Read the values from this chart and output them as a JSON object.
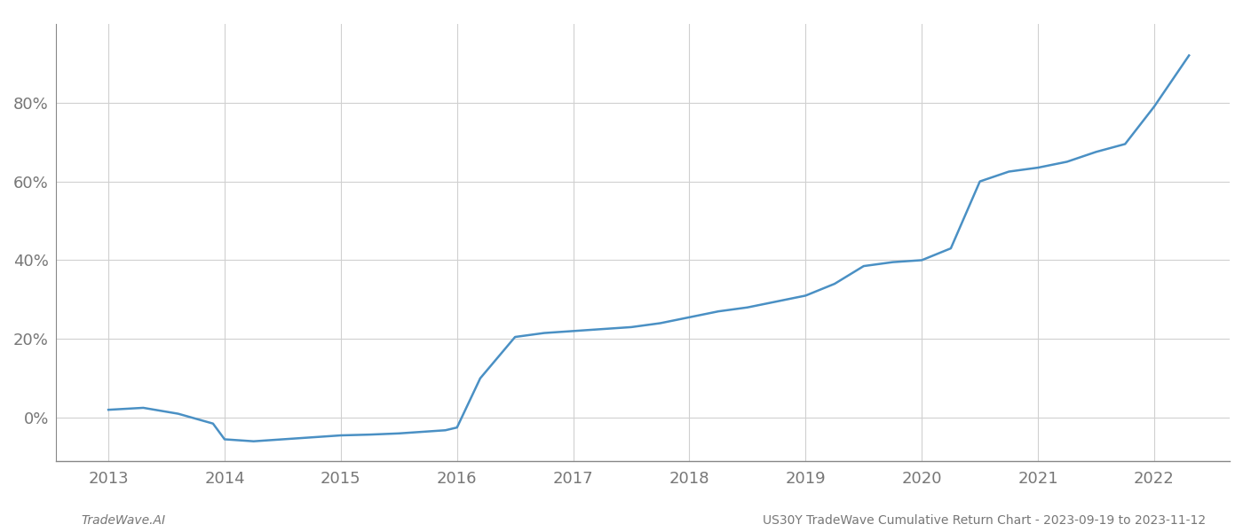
{
  "x_values": [
    2013.0,
    2013.3,
    2013.6,
    2013.9,
    2014.0,
    2014.25,
    2014.5,
    2014.75,
    2015.0,
    2015.25,
    2015.5,
    2015.75,
    2015.9,
    2016.0,
    2016.2,
    2016.5,
    2016.75,
    2017.0,
    2017.25,
    2017.5,
    2017.75,
    2018.0,
    2018.25,
    2018.5,
    2018.75,
    2019.0,
    2019.25,
    2019.5,
    2019.75,
    2020.0,
    2020.25,
    2020.5,
    2020.75,
    2021.0,
    2021.25,
    2021.5,
    2021.75,
    2022.0,
    2022.3
  ],
  "y_values": [
    2.0,
    2.5,
    1.0,
    -1.5,
    -5.5,
    -6.0,
    -5.5,
    -5.0,
    -4.5,
    -4.3,
    -4.0,
    -3.5,
    -3.2,
    -2.5,
    10.0,
    20.5,
    21.5,
    22.0,
    22.5,
    23.0,
    24.0,
    25.5,
    27.0,
    28.0,
    29.5,
    31.0,
    34.0,
    38.5,
    39.5,
    40.0,
    43.0,
    60.0,
    62.5,
    63.5,
    65.0,
    67.5,
    69.5,
    79.0,
    92.0
  ],
  "line_color": "#4a90c4",
  "line_width": 1.8,
  "background_color": "#ffffff",
  "grid_color": "#d0d0d0",
  "x_ticks": [
    2013,
    2014,
    2015,
    2016,
    2017,
    2018,
    2019,
    2020,
    2021,
    2022
  ],
  "y_ticks": [
    0,
    20,
    40,
    60,
    80
  ],
  "y_tick_labels": [
    "0%",
    "20%",
    "40%",
    "60%",
    "80%"
  ],
  "xlim": [
    2012.55,
    2022.65
  ],
  "ylim": [
    -11,
    100
  ],
  "footer_left": "TradeWave.AI",
  "footer_right": "US30Y TradeWave Cumulative Return Chart - 2023-09-19 to 2023-11-12",
  "footer_fontsize": 10,
  "tick_fontsize": 13,
  "axis_color": "#777777",
  "spine_color": "#888888"
}
